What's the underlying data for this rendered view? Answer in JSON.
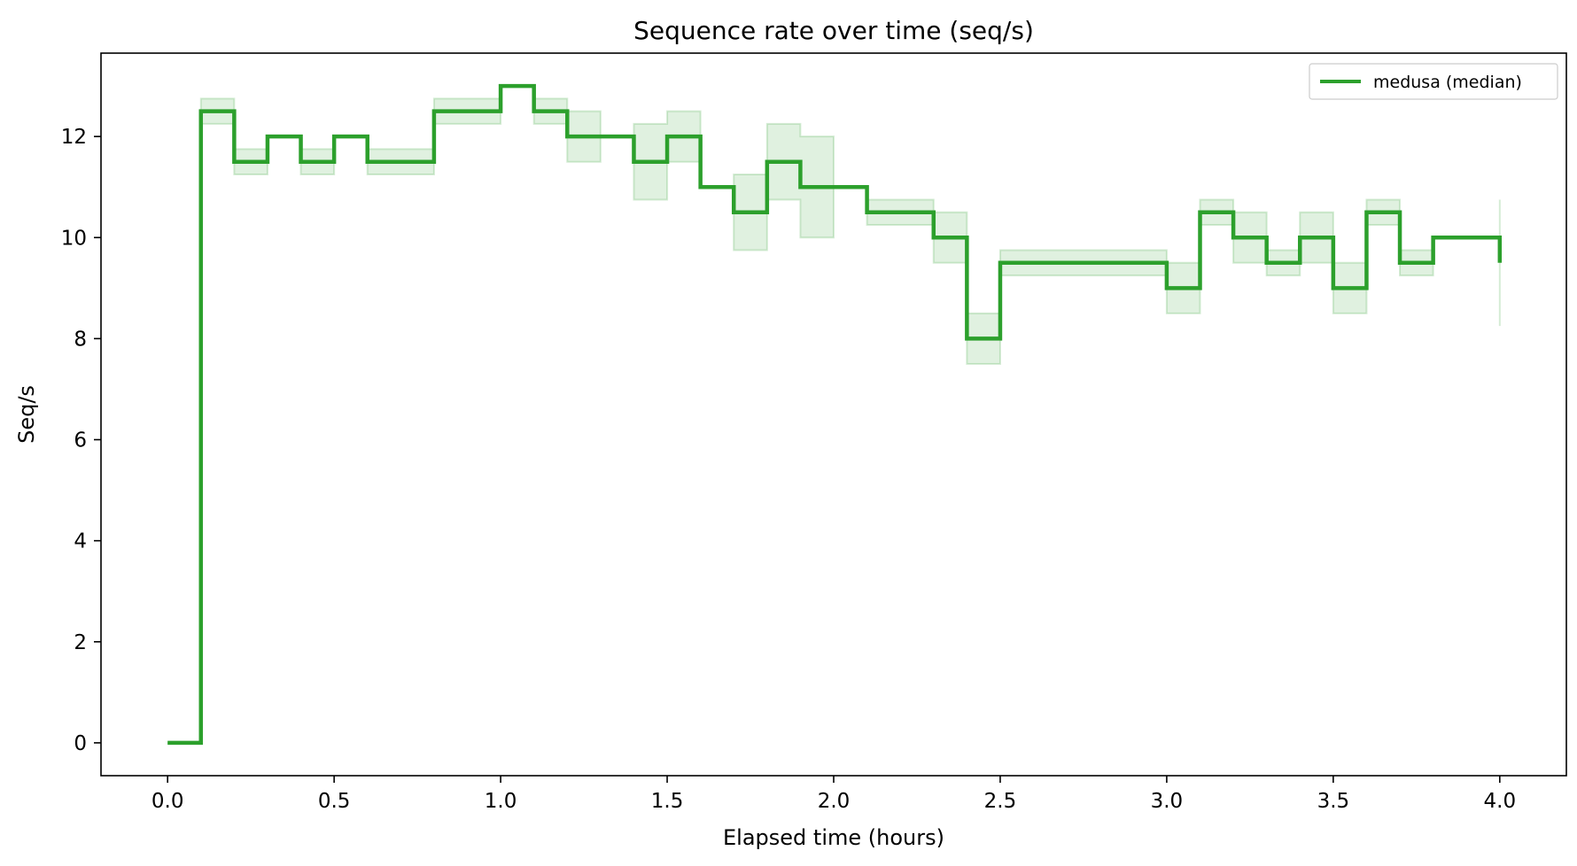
{
  "chart_data": {
    "type": "line",
    "title": "Sequence rate over time (seq/s)",
    "xlabel": "Elapsed time (hours)",
    "ylabel": "Seq/s",
    "xlim": [
      -0.2,
      4.2
    ],
    "ylim": [
      -0.65,
      13.65
    ],
    "xticks": [
      0.0,
      0.5,
      1.0,
      1.5,
      2.0,
      2.5,
      3.0,
      3.5,
      4.0
    ],
    "xtick_labels": [
      "0.0",
      "0.5",
      "1.0",
      "1.5",
      "2.0",
      "2.5",
      "3.0",
      "3.5",
      "4.0"
    ],
    "yticks": [
      0,
      2,
      4,
      6,
      8,
      10,
      12
    ],
    "ytick_labels": [
      "0",
      "2",
      "4",
      "6",
      "8",
      "10",
      "12"
    ],
    "grid": false,
    "legend_position": "top-right",
    "step": "post",
    "colors": {
      "series": "#2ca02c",
      "band": "#2ca02c"
    },
    "series": [
      {
        "name": "medusa (median)",
        "x": [
          0.0,
          0.1,
          0.2,
          0.3,
          0.4,
          0.5,
          0.6,
          0.7,
          0.8,
          0.9,
          1.0,
          1.1,
          1.2,
          1.3,
          1.4,
          1.5,
          1.6,
          1.7,
          1.8,
          1.9,
          2.0,
          2.1,
          2.2,
          2.3,
          2.4,
          2.5,
          2.6,
          2.7,
          2.8,
          2.9,
          3.0,
          3.1,
          3.2,
          3.3,
          3.4,
          3.5,
          3.6,
          3.7,
          3.8,
          3.9,
          4.0
        ],
        "y": [
          0,
          12.5,
          11.5,
          12,
          11.5,
          12,
          11.5,
          11.5,
          12.5,
          12.5,
          13,
          12.5,
          12,
          12,
          11.5,
          12,
          11,
          10.5,
          11.5,
          11,
          11,
          10.5,
          10.5,
          10,
          8,
          9.5,
          9.5,
          9.5,
          9.5,
          9.5,
          9,
          10.5,
          10,
          9.5,
          10,
          9,
          10.5,
          9.5,
          10,
          10,
          9.5
        ],
        "band_lower": [
          0,
          12.25,
          11.25,
          12,
          11.25,
          12,
          11.25,
          11.25,
          12.25,
          12.25,
          13,
          12.25,
          11.5,
          12,
          10.75,
          11.5,
          11,
          9.75,
          10.75,
          10,
          11,
          10.25,
          10.25,
          9.5,
          7.5,
          9.25,
          9.25,
          9.25,
          9.25,
          9.25,
          8.5,
          10.25,
          9.5,
          9.25,
          9.5,
          8.5,
          10.25,
          9.25,
          10,
          10,
          8.25
        ],
        "band_upper": [
          0,
          12.75,
          11.75,
          12,
          11.75,
          12,
          11.75,
          11.75,
          12.75,
          12.75,
          13,
          12.75,
          12.5,
          12,
          12.25,
          12.5,
          11,
          11.25,
          12.25,
          12,
          11,
          10.75,
          10.75,
          10.5,
          8.5,
          9.75,
          9.75,
          9.75,
          9.75,
          9.75,
          9.5,
          10.75,
          10.5,
          9.75,
          10.5,
          9.5,
          10.75,
          9.75,
          10,
          10,
          10.75
        ]
      }
    ]
  }
}
